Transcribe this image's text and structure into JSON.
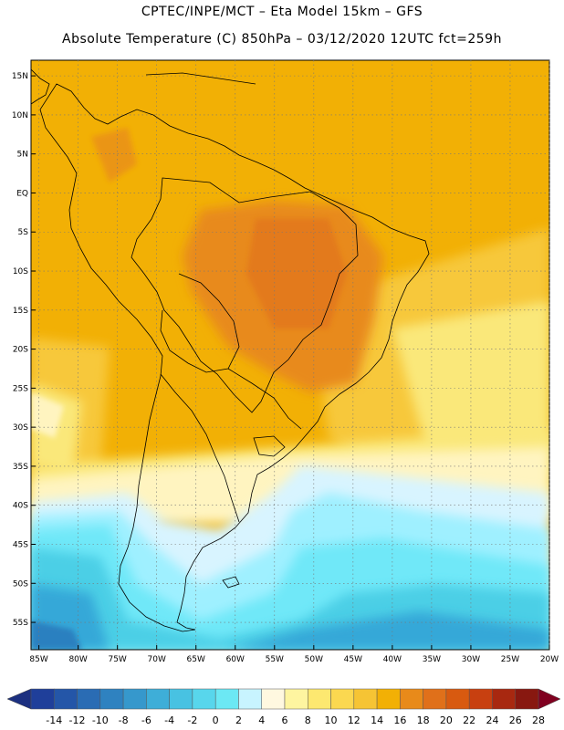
{
  "title": {
    "line1": "CPTEC/INPE/MCT –  Eta Model 15km – GFS",
    "line2": "Absolute Temperature (C) 850hPa – 03/12/2020 12UTC fct=259h"
  },
  "map": {
    "lon_range": [
      -86,
      -20
    ],
    "lat_range": [
      -58.5,
      17
    ],
    "lat_ticks": [
      {
        "value": 15,
        "label": "15N"
      },
      {
        "value": 10,
        "label": "10N"
      },
      {
        "value": 5,
        "label": "5N"
      },
      {
        "value": 0,
        "label": "EQ"
      },
      {
        "value": -5,
        "label": "5S"
      },
      {
        "value": -10,
        "label": "10S"
      },
      {
        "value": -15,
        "label": "15S"
      },
      {
        "value": -20,
        "label": "20S"
      },
      {
        "value": -25,
        "label": "25S"
      },
      {
        "value": -30,
        "label": "30S"
      },
      {
        "value": -35,
        "label": "35S"
      },
      {
        "value": -40,
        "label": "40S"
      },
      {
        "value": -45,
        "label": "45S"
      },
      {
        "value": -50,
        "label": "50S"
      },
      {
        "value": -55,
        "label": "55S"
      }
    ],
    "lon_ticks": [
      {
        "value": -85,
        "label": "85W"
      },
      {
        "value": -80,
        "label": "80W"
      },
      {
        "value": -75,
        "label": "75W"
      },
      {
        "value": -70,
        "label": "70W"
      },
      {
        "value": -65,
        "label": "65W"
      },
      {
        "value": -60,
        "label": "60W"
      },
      {
        "value": -55,
        "label": "55W"
      },
      {
        "value": -50,
        "label": "50W"
      },
      {
        "value": -45,
        "label": "45W"
      },
      {
        "value": -40,
        "label": "40W"
      },
      {
        "value": -35,
        "label": "35W"
      },
      {
        "value": -30,
        "label": "30W"
      },
      {
        "value": -25,
        "label": "25W"
      },
      {
        "value": -20,
        "label": "20W"
      }
    ],
    "colors": {
      "warm_base": "#f2b005",
      "hot": "#e88a1a",
      "very_hot": "#e0701a",
      "mild": "#f7c83a",
      "light_yellow": "#fae87a",
      "pale_yellow": "#fff4c0",
      "cream": "#fffae8",
      "pale_cyan": "#d8f4ff",
      "cyan_light": "#9ff0ff",
      "cyan": "#6fe8f8",
      "teal": "#4ccfe6",
      "blue_mid": "#36a8d8",
      "blue_dark": "#2a80c0",
      "coast": "#000000"
    }
  },
  "colorbar": {
    "ticks": [
      "-14",
      "-12",
      "-10",
      "-8",
      "-6",
      "-4",
      "-2",
      "0",
      "2",
      "4",
      "6",
      "8",
      "10",
      "12",
      "14",
      "16",
      "18",
      "20",
      "22",
      "24",
      "26",
      "28"
    ],
    "colors": [
      "#1f3f9a",
      "#2456a8",
      "#2a6cb4",
      "#2f82c0",
      "#3698cc",
      "#3eaed8",
      "#48c2e2",
      "#58d6ec",
      "#6ce8f4",
      "#c8f4ff",
      "#fff8e0",
      "#fef5a0",
      "#fde870",
      "#fbd850",
      "#f6c434",
      "#f2b005",
      "#e88a1a",
      "#e0701a",
      "#d85a10",
      "#c84010",
      "#a82810",
      "#881810"
    ],
    "under_color": "#1c3080",
    "over_color": "#800020"
  }
}
